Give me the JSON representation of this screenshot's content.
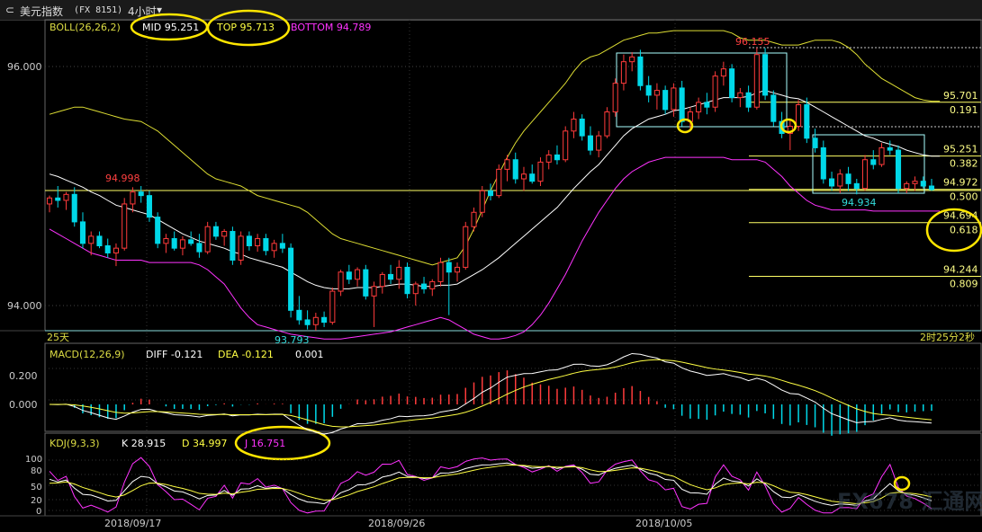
{
  "header": {
    "back_glyph": "⊂",
    "title": "美元指数",
    "code": "(FX 8151)",
    "period": "4小时",
    "period_arrow": "▾"
  },
  "boll": {
    "label": "BOLL(26,26,2)",
    "mid": "MID 95.251",
    "top": "TOP 95.713",
    "bottom": "BOTTOM 94.789"
  },
  "macd": {
    "label": "MACD(12,26,9)",
    "diff": "DIFF -0.121",
    "dea": "DEA -0.121",
    "macd_value": "0.001"
  },
  "kdj": {
    "label": "KDJ(9,3,3)",
    "k": "K 28.915",
    "d": "D 34.997",
    "j": "J 16.751"
  },
  "price_axis": [
    "96.000",
    "94.000"
  ],
  "macd_axis": [
    "0.200",
    "0.000"
  ],
  "kdj_axis": [
    "100",
    "80",
    "50",
    "20",
    "0"
  ],
  "dates": [
    "2018/09/17",
    "2018/09/26",
    "2018/10/05"
  ],
  "annotations": {
    "high_1": "94.998",
    "low_1": "93.793",
    "high_2": "96.155",
    "low_2": "94.934",
    "period_label": "25天",
    "countdown": "2时25分2秒"
  },
  "fib_levels": [
    {
      "price": "95.701",
      "ratio": "0.191",
      "value": 95.701
    },
    {
      "price": "95.251",
      "ratio": "0.382",
      "value": 95.251
    },
    {
      "price": "94.972",
      "ratio": "0.500",
      "value": 94.972
    },
    {
      "price": "94.694",
      "ratio": "0.618",
      "value": 94.694
    },
    {
      "price": "94.244",
      "ratio": "0.809",
      "value": 94.244
    }
  ],
  "watermark": "FX678 汇通网",
  "colors": {
    "up": "#ff3b3b",
    "down": "#00d8e8",
    "mid": "#ffffff",
    "top": "#ffff44",
    "bottom": "#ff33ff",
    "circle": "#ffe600",
    "fib": "#ffff66"
  },
  "chart_data": {
    "type": "candlestick",
    "price_range": [
      93.75,
      96.4
    ],
    "candles": [
      {
        "o": 94.85,
        "h": 94.92,
        "l": 94.78,
        "c": 94.9
      },
      {
        "o": 94.9,
        "h": 95.0,
        "l": 94.82,
        "c": 94.88
      },
      {
        "o": 94.88,
        "h": 94.95,
        "l": 94.8,
        "c": 94.93
      },
      {
        "o": 94.93,
        "h": 94.99,
        "l": 94.66,
        "c": 94.7
      },
      {
        "o": 94.7,
        "h": 94.78,
        "l": 94.48,
        "c": 94.52
      },
      {
        "o": 94.52,
        "h": 94.62,
        "l": 94.42,
        "c": 94.58
      },
      {
        "o": 94.58,
        "h": 94.62,
        "l": 94.48,
        "c": 94.5
      },
      {
        "o": 94.5,
        "h": 94.56,
        "l": 94.4,
        "c": 94.44
      },
      {
        "o": 94.44,
        "h": 94.52,
        "l": 94.33,
        "c": 94.48
      },
      {
        "o": 94.48,
        "h": 94.9,
        "l": 94.46,
        "c": 94.85
      },
      {
        "o": 94.85,
        "h": 94.99,
        "l": 94.78,
        "c": 94.95
      },
      {
        "o": 94.95,
        "h": 95.0,
        "l": 94.86,
        "c": 94.92
      },
      {
        "o": 94.92,
        "h": 94.96,
        "l": 94.7,
        "c": 94.74
      },
      {
        "o": 94.74,
        "h": 94.78,
        "l": 94.48,
        "c": 94.52
      },
      {
        "o": 94.52,
        "h": 94.6,
        "l": 94.44,
        "c": 94.56
      },
      {
        "o": 94.56,
        "h": 94.62,
        "l": 94.46,
        "c": 94.48
      },
      {
        "o": 94.48,
        "h": 94.58,
        "l": 94.42,
        "c": 94.55
      },
      {
        "o": 94.55,
        "h": 94.62,
        "l": 94.5,
        "c": 94.52
      },
      {
        "o": 94.52,
        "h": 94.6,
        "l": 94.4,
        "c": 94.45
      },
      {
        "o": 94.45,
        "h": 94.7,
        "l": 94.43,
        "c": 94.66
      },
      {
        "o": 94.66,
        "h": 94.7,
        "l": 94.55,
        "c": 94.58
      },
      {
        "o": 94.58,
        "h": 94.64,
        "l": 94.5,
        "c": 94.62
      },
      {
        "o": 94.62,
        "h": 94.66,
        "l": 94.34,
        "c": 94.38
      },
      {
        "o": 94.38,
        "h": 94.62,
        "l": 94.34,
        "c": 94.58
      },
      {
        "o": 94.58,
        "h": 94.62,
        "l": 94.46,
        "c": 94.5
      },
      {
        "o": 94.5,
        "h": 94.6,
        "l": 94.45,
        "c": 94.56
      },
      {
        "o": 94.56,
        "h": 94.6,
        "l": 94.42,
        "c": 94.46
      },
      {
        "o": 94.46,
        "h": 94.55,
        "l": 94.4,
        "c": 94.52
      },
      {
        "o": 94.52,
        "h": 94.6,
        "l": 94.44,
        "c": 94.48
      },
      {
        "o": 94.48,
        "h": 94.52,
        "l": 93.9,
        "c": 93.96
      },
      {
        "o": 93.96,
        "h": 94.08,
        "l": 93.84,
        "c": 93.88
      },
      {
        "o": 93.88,
        "h": 93.96,
        "l": 93.8,
        "c": 93.84
      },
      {
        "o": 93.84,
        "h": 93.94,
        "l": 93.79,
        "c": 93.9
      },
      {
        "o": 93.9,
        "h": 93.95,
        "l": 93.82,
        "c": 93.86
      },
      {
        "o": 93.86,
        "h": 94.15,
        "l": 93.84,
        "c": 94.12
      },
      {
        "o": 94.12,
        "h": 94.3,
        "l": 94.08,
        "c": 94.28
      },
      {
        "o": 94.28,
        "h": 94.34,
        "l": 94.18,
        "c": 94.22
      },
      {
        "o": 94.22,
        "h": 94.32,
        "l": 94.16,
        "c": 94.3
      },
      {
        "o": 94.3,
        "h": 94.34,
        "l": 94.05,
        "c": 94.08
      },
      {
        "o": 94.08,
        "h": 94.2,
        "l": 93.82,
        "c": 94.16
      },
      {
        "o": 94.16,
        "h": 94.28,
        "l": 94.1,
        "c": 94.26
      },
      {
        "o": 94.26,
        "h": 94.34,
        "l": 94.18,
        "c": 94.22
      },
      {
        "o": 94.22,
        "h": 94.38,
        "l": 94.14,
        "c": 94.32
      },
      {
        "o": 94.32,
        "h": 94.36,
        "l": 94.06,
        "c": 94.1
      },
      {
        "o": 94.1,
        "h": 94.2,
        "l": 94.0,
        "c": 94.18
      },
      {
        "o": 94.18,
        "h": 94.24,
        "l": 94.1,
        "c": 94.14
      },
      {
        "o": 94.14,
        "h": 94.22,
        "l": 94.08,
        "c": 94.2
      },
      {
        "o": 94.2,
        "h": 94.4,
        "l": 94.16,
        "c": 94.36
      },
      {
        "o": 94.36,
        "h": 94.4,
        "l": 93.92,
        "c": 94.28
      },
      {
        "o": 94.28,
        "h": 94.36,
        "l": 94.2,
        "c": 94.32
      },
      {
        "o": 94.32,
        "h": 94.7,
        "l": 94.3,
        "c": 94.66
      },
      {
        "o": 94.66,
        "h": 94.82,
        "l": 94.62,
        "c": 94.78
      },
      {
        "o": 94.78,
        "h": 95.0,
        "l": 94.74,
        "c": 94.96
      },
      {
        "o": 94.96,
        "h": 95.02,
        "l": 94.88,
        "c": 94.92
      },
      {
        "o": 94.92,
        "h": 95.18,
        "l": 94.9,
        "c": 95.14
      },
      {
        "o": 95.14,
        "h": 95.26,
        "l": 95.04,
        "c": 95.22
      },
      {
        "o": 95.22,
        "h": 95.28,
        "l": 95.02,
        "c": 95.06
      },
      {
        "o": 95.06,
        "h": 95.16,
        "l": 94.96,
        "c": 95.1
      },
      {
        "o": 95.1,
        "h": 95.18,
        "l": 95.02,
        "c": 95.04
      },
      {
        "o": 95.04,
        "h": 95.24,
        "l": 95.0,
        "c": 95.2
      },
      {
        "o": 95.2,
        "h": 95.3,
        "l": 95.14,
        "c": 95.26
      },
      {
        "o": 95.26,
        "h": 95.34,
        "l": 95.18,
        "c": 95.22
      },
      {
        "o": 95.22,
        "h": 95.5,
        "l": 95.2,
        "c": 95.46
      },
      {
        "o": 95.46,
        "h": 95.62,
        "l": 95.4,
        "c": 95.56
      },
      {
        "o": 95.56,
        "h": 95.6,
        "l": 95.38,
        "c": 95.42
      },
      {
        "o": 95.42,
        "h": 95.5,
        "l": 95.26,
        "c": 95.3
      },
      {
        "o": 95.3,
        "h": 95.46,
        "l": 95.24,
        "c": 95.42
      },
      {
        "o": 95.42,
        "h": 95.66,
        "l": 95.4,
        "c": 95.62
      },
      {
        "o": 95.62,
        "h": 95.9,
        "l": 95.58,
        "c": 95.86
      },
      {
        "o": 95.86,
        "h": 96.1,
        "l": 95.8,
        "c": 96.04
      },
      {
        "o": 96.04,
        "h": 96.12,
        "l": 95.96,
        "c": 96.08
      },
      {
        "o": 96.08,
        "h": 96.14,
        "l": 95.8,
        "c": 95.84
      },
      {
        "o": 95.84,
        "h": 95.92,
        "l": 95.7,
        "c": 95.76
      },
      {
        "o": 95.76,
        "h": 95.86,
        "l": 95.64,
        "c": 95.8
      },
      {
        "o": 95.8,
        "h": 95.84,
        "l": 95.6,
        "c": 95.64
      },
      {
        "o": 95.64,
        "h": 95.86,
        "l": 95.58,
        "c": 95.82
      },
      {
        "o": 95.82,
        "h": 95.88,
        "l": 95.5,
        "c": 95.54
      },
      {
        "o": 95.54,
        "h": 95.66,
        "l": 95.48,
        "c": 95.62
      },
      {
        "o": 95.62,
        "h": 95.74,
        "l": 95.56,
        "c": 95.7
      },
      {
        "o": 95.7,
        "h": 95.78,
        "l": 95.6,
        "c": 95.66
      },
      {
        "o": 95.66,
        "h": 95.96,
        "l": 95.62,
        "c": 95.92
      },
      {
        "o": 95.92,
        "h": 96.04,
        "l": 95.84,
        "c": 95.98
      },
      {
        "o": 95.98,
        "h": 96.02,
        "l": 95.7,
        "c": 95.74
      },
      {
        "o": 95.74,
        "h": 95.82,
        "l": 95.66,
        "c": 95.78
      },
      {
        "o": 95.78,
        "h": 95.84,
        "l": 95.62,
        "c": 95.66
      },
      {
        "o": 95.66,
        "h": 96.16,
        "l": 95.64,
        "c": 96.1
      },
      {
        "o": 96.1,
        "h": 96.155,
        "l": 95.72,
        "c": 95.76
      },
      {
        "o": 95.76,
        "h": 95.8,
        "l": 95.5,
        "c": 95.54
      },
      {
        "o": 95.54,
        "h": 95.62,
        "l": 95.4,
        "c": 95.44
      },
      {
        "o": 95.44,
        "h": 95.56,
        "l": 95.3,
        "c": 95.5
      },
      {
        "o": 95.5,
        "h": 95.72,
        "l": 95.46,
        "c": 95.68
      },
      {
        "o": 95.68,
        "h": 95.74,
        "l": 95.36,
        "c": 95.4
      },
      {
        "o": 95.4,
        "h": 95.48,
        "l": 95.28,
        "c": 95.32
      },
      {
        "o": 95.32,
        "h": 95.38,
        "l": 95.02,
        "c": 95.06
      },
      {
        "o": 95.06,
        "h": 95.12,
        "l": 94.96,
        "c": 95.0
      },
      {
        "o": 95.0,
        "h": 95.14,
        "l": 94.94,
        "c": 95.1
      },
      {
        "o": 95.1,
        "h": 95.16,
        "l": 94.96,
        "c": 95.02
      },
      {
        "o": 95.02,
        "h": 95.06,
        "l": 94.93,
        "c": 94.98
      },
      {
        "o": 94.98,
        "h": 95.26,
        "l": 94.96,
        "c": 95.22
      },
      {
        "o": 95.22,
        "h": 95.3,
        "l": 95.14,
        "c": 95.18
      },
      {
        "o": 95.18,
        "h": 95.36,
        "l": 95.16,
        "c": 95.32
      },
      {
        "o": 95.32,
        "h": 95.38,
        "l": 95.26,
        "c": 95.3
      },
      {
        "o": 95.3,
        "h": 95.34,
        "l": 94.94,
        "c": 94.98
      },
      {
        "o": 94.98,
        "h": 95.04,
        "l": 94.94,
        "c": 95.02
      },
      {
        "o": 95.02,
        "h": 95.08,
        "l": 94.96,
        "c": 95.04
      },
      {
        "o": 95.04,
        "h": 95.08,
        "l": 94.98,
        "c": 95.0
      },
      {
        "o": 95.0,
        "h": 95.06,
        "l": 94.96,
        "c": 94.97
      }
    ],
    "boll_mid": [
      95.1,
      95.08,
      95.05,
      95.02,
      94.99,
      94.95,
      94.92,
      94.88,
      94.84,
      94.82,
      94.8,
      94.78,
      94.76,
      94.72,
      94.68,
      94.64,
      94.6,
      94.57,
      94.54,
      94.52,
      94.5,
      94.48,
      94.45,
      94.43,
      94.4,
      94.38,
      94.36,
      94.34,
      94.32,
      94.28,
      94.24,
      94.2,
      94.17,
      94.15,
      94.14,
      94.14,
      94.14,
      94.15,
      94.15,
      94.15,
      94.16,
      94.17,
      94.18,
      94.18,
      94.17,
      94.16,
      94.16,
      94.17,
      94.17,
      94.18,
      94.22,
      94.26,
      94.3,
      94.35,
      94.4,
      94.46,
      94.52,
      94.58,
      94.64,
      94.7,
      94.76,
      94.82,
      94.9,
      94.98,
      95.05,
      95.12,
      95.18,
      95.26,
      95.34,
      95.42,
      95.48,
      95.52,
      95.56,
      95.58,
      95.6,
      95.63,
      95.64,
      95.66,
      95.68,
      95.7,
      95.72,
      95.74,
      95.74,
      95.74,
      95.75,
      95.78,
      95.8,
      95.78,
      95.76,
      95.74,
      95.73,
      95.7,
      95.66,
      95.62,
      95.58,
      95.54,
      95.5,
      95.46,
      95.42,
      95.4,
      95.37,
      95.35,
      95.33,
      95.3,
      95.28,
      95.26,
      95.25,
      95.25
    ],
    "boll_top": [
      95.6,
      95.62,
      95.64,
      95.66,
      95.66,
      95.64,
      95.62,
      95.6,
      95.58,
      95.56,
      95.55,
      95.54,
      95.5,
      95.46,
      95.4,
      95.34,
      95.28,
      95.22,
      95.16,
      95.1,
      95.06,
      95.04,
      95.02,
      95.0,
      94.96,
      94.92,
      94.9,
      94.88,
      94.86,
      94.84,
      94.82,
      94.78,
      94.72,
      94.66,
      94.6,
      94.56,
      94.54,
      94.52,
      94.5,
      94.48,
      94.46,
      94.44,
      94.42,
      94.4,
      94.38,
      94.36,
      94.34,
      94.36,
      94.38,
      94.4,
      94.5,
      94.64,
      94.8,
      94.96,
      95.1,
      95.24,
      95.36,
      95.46,
      95.54,
      95.62,
      95.7,
      95.78,
      95.86,
      95.96,
      96.04,
      96.08,
      96.1,
      96.14,
      96.18,
      96.22,
      96.24,
      96.26,
      96.28,
      96.28,
      96.29,
      96.3,
      96.3,
      96.3,
      96.3,
      96.3,
      96.3,
      96.3,
      96.28,
      96.24,
      96.22,
      96.22,
      96.22,
      96.2,
      96.18,
      96.18,
      96.18,
      96.2,
      96.22,
      96.22,
      96.22,
      96.2,
      96.16,
      96.1,
      96.02,
      95.96,
      95.9,
      95.86,
      95.82,
      95.78,
      95.74,
      95.72,
      95.71,
      95.71
    ],
    "boll_bottom": [
      94.64,
      94.6,
      94.56,
      94.52,
      94.48,
      94.44,
      94.42,
      94.4,
      94.38,
      94.38,
      94.38,
      94.38,
      94.36,
      94.36,
      94.36,
      94.36,
      94.36,
      94.36,
      94.34,
      94.3,
      94.24,
      94.18,
      94.08,
      93.98,
      93.9,
      93.84,
      93.82,
      93.8,
      93.78,
      93.76,
      93.75,
      93.74,
      93.73,
      93.72,
      93.72,
      93.72,
      93.73,
      93.74,
      93.75,
      93.76,
      93.77,
      93.78,
      93.8,
      93.82,
      93.84,
      93.86,
      93.88,
      93.9,
      93.88,
      93.84,
      93.8,
      93.76,
      93.74,
      93.72,
      93.72,
      93.73,
      93.75,
      93.78,
      93.84,
      93.92,
      94.02,
      94.14,
      94.26,
      94.4,
      94.54,
      94.66,
      94.78,
      94.88,
      94.98,
      95.06,
      95.12,
      95.16,
      95.2,
      95.22,
      95.24,
      95.24,
      95.24,
      95.24,
      95.24,
      95.24,
      95.24,
      95.24,
      95.22,
      95.22,
      95.22,
      95.22,
      95.2,
      95.14,
      95.08,
      95.0,
      94.94,
      94.88,
      94.84,
      94.82,
      94.8,
      94.8,
      94.8,
      94.8,
      94.8,
      94.79,
      94.79,
      94.79,
      94.79,
      94.79,
      94.79,
      94.79,
      94.79,
      94.79
    ]
  }
}
